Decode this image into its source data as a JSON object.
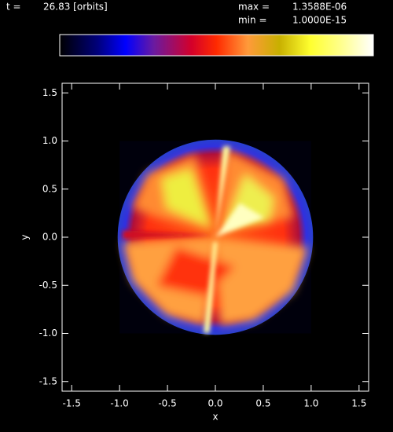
{
  "chart_data": {
    "type": "image",
    "header": {
      "t_label": "t =",
      "t_value": "26.83 [orbits]",
      "max_label": "max =",
      "max_value": "1.3588E-06",
      "min_label": "min =",
      "min_value": "1.0000E-15"
    },
    "x_label": "x",
    "y_label": "y",
    "xlim": [
      -1.6,
      1.6
    ],
    "ylim": [
      -1.6,
      1.6
    ],
    "xticks": [
      -1.5,
      {
        "value": -1,
        "label": "-1.0"
      },
      -0.5,
      {
        "value": 0,
        "label": "0.0"
      },
      0.5,
      {
        "value": 1,
        "label": "1.0"
      },
      1.5
    ],
    "yticks": [
      -1.5,
      {
        "value": -1,
        "label": "-1.0"
      },
      -0.5,
      {
        "value": 0,
        "label": "0.0"
      },
      0.5,
      {
        "value": 1,
        "label": "1.0"
      },
      1.5
    ]
  }
}
